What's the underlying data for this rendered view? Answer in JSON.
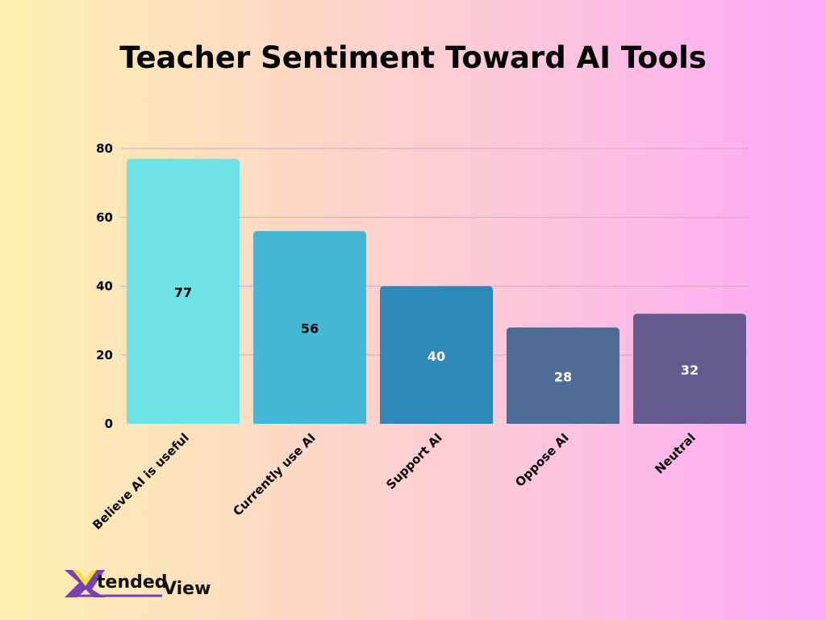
{
  "chart_data": {
    "type": "bar",
    "title": "Teacher Sentiment Toward AI Tools",
    "categories": [
      "Believe AI is useful",
      "Currently use AI",
      "Support AI",
      "Oppose AI",
      "Neutral"
    ],
    "values": [
      77,
      56,
      40,
      28,
      32
    ],
    "colors": [
      "#6de3e8",
      "#42b7d6",
      "#2d8ab8",
      "#4e6c96",
      "#655a8e"
    ],
    "label_colors": [
      "#000000",
      "#000000",
      "#ffffff",
      "#ffffff",
      "#ffffff"
    ],
    "ylim": [
      0,
      80
    ],
    "yticks": [
      0,
      20,
      40,
      60,
      80
    ],
    "grid": true,
    "xlabel": "",
    "ylabel": ""
  },
  "logo": {
    "text": "XtendedView",
    "colors": {
      "purple": "#7b3fb5",
      "yellow": "#f2e12e"
    }
  }
}
